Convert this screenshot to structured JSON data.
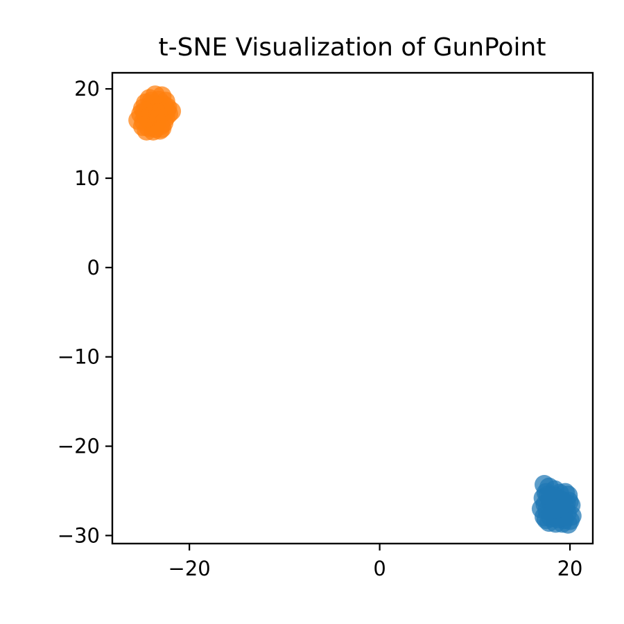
{
  "chart_data": {
    "type": "scatter",
    "title": "t-SNE Visualization of GunPoint",
    "xlabel": "",
    "ylabel": "",
    "xlim": [
      -28.1,
      22.4
    ],
    "ylim": [
      -30.9,
      21.8
    ],
    "xticks": [
      -20,
      0,
      20
    ],
    "xtick_labels": [
      "−20",
      "0",
      "20"
    ],
    "yticks": [
      20,
      10,
      0,
      -10,
      -20,
      -30
    ],
    "ytick_labels": [
      "20",
      "10",
      "0",
      "−10",
      "−20",
      "−30"
    ],
    "grid": false,
    "legend": "none",
    "series": [
      {
        "color": "#1f77b4",
        "points": [
          [
            17.3,
            -24.3
          ],
          [
            17.8,
            -24.6
          ],
          [
            18.4,
            -24.9
          ],
          [
            17.5,
            -25.2
          ],
          [
            18.9,
            -25.3
          ],
          [
            19.5,
            -25.2
          ],
          [
            19.8,
            -25.5
          ],
          [
            17.2,
            -25.8
          ],
          [
            17.9,
            -25.9
          ],
          [
            18.6,
            -26.0
          ],
          [
            19.2,
            -26.1
          ],
          [
            19.9,
            -26.2
          ],
          [
            20.1,
            -26.6
          ],
          [
            17.4,
            -26.5
          ],
          [
            18.1,
            -26.7
          ],
          [
            18.8,
            -26.8
          ],
          [
            19.5,
            -26.9
          ],
          [
            17.0,
            -27.0
          ],
          [
            17.6,
            -27.2
          ],
          [
            18.3,
            -27.3
          ],
          [
            19.0,
            -27.4
          ],
          [
            19.7,
            -27.5
          ],
          [
            20.2,
            -27.8
          ],
          [
            17.3,
            -27.9
          ],
          [
            18.0,
            -28.0
          ],
          [
            18.7,
            -28.1
          ],
          [
            19.4,
            -28.2
          ],
          [
            20.0,
            -28.3
          ],
          [
            17.8,
            -28.5
          ],
          [
            18.5,
            -28.6
          ],
          [
            19.2,
            -28.6
          ],
          [
            19.8,
            -28.7
          ],
          [
            18.2,
            -27.6
          ],
          [
            18.9,
            -26.4
          ],
          [
            17.7,
            -25.5
          ],
          [
            19.3,
            -27.9
          ],
          [
            18.4,
            -25.6
          ],
          [
            19.6,
            -26.4
          ],
          [
            17.5,
            -28.2
          ],
          [
            18.6,
            -27.0
          ]
        ]
      },
      {
        "color": "#ff7f0e",
        "points": [
          [
            -23.6,
            19.3
          ],
          [
            -22.9,
            19.2
          ],
          [
            -24.2,
            18.9
          ],
          [
            -23.2,
            18.7
          ],
          [
            -22.5,
            18.6
          ],
          [
            -24.6,
            18.4
          ],
          [
            -23.9,
            18.3
          ],
          [
            -23.1,
            18.1
          ],
          [
            -22.3,
            17.9
          ],
          [
            -21.9,
            17.5
          ],
          [
            -24.9,
            17.8
          ],
          [
            -24.3,
            17.7
          ],
          [
            -23.6,
            17.6
          ],
          [
            -22.8,
            17.4
          ],
          [
            -22.2,
            17.2
          ],
          [
            -25.1,
            17.2
          ],
          [
            -24.6,
            17.1
          ],
          [
            -23.9,
            17.0
          ],
          [
            -23.2,
            16.9
          ],
          [
            -22.5,
            16.8
          ],
          [
            -25.4,
            16.5
          ],
          [
            -24.8,
            16.4
          ],
          [
            -24.1,
            16.3
          ],
          [
            -23.4,
            16.3
          ],
          [
            -22.7,
            16.2
          ],
          [
            -24.9,
            15.8
          ],
          [
            -24.3,
            15.7
          ],
          [
            -23.6,
            15.6
          ],
          [
            -22.9,
            15.6
          ],
          [
            -24.5,
            15.3
          ],
          [
            -23.8,
            15.3
          ],
          [
            -23.1,
            15.4
          ],
          [
            -24.0,
            18.6
          ],
          [
            -22.7,
            18.2
          ],
          [
            -23.5,
            16.6
          ],
          [
            -24.7,
            17.5
          ],
          [
            -22.4,
            17.6
          ],
          [
            -23.0,
            15.9
          ],
          [
            -24.4,
            16.8
          ],
          [
            -23.3,
            17.3
          ]
        ]
      }
    ]
  }
}
